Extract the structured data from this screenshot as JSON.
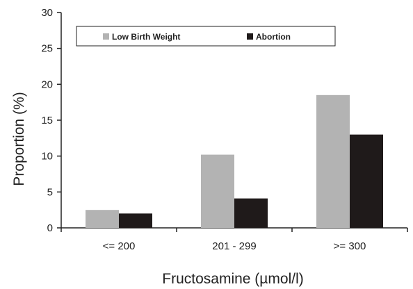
{
  "chart_data": {
    "type": "bar",
    "title": "",
    "xlabel": "Fructosamine (µmol/l)",
    "ylabel": "Proportion (%)",
    "categories": [
      "<= 200",
      "201 - 299",
      ">= 300"
    ],
    "series": [
      {
        "name": "Low Birth Weight",
        "values": [
          2.5,
          10.2,
          18.5
        ],
        "color": "#b3b3b3"
      },
      {
        "name": "Abortion",
        "values": [
          2.0,
          4.1,
          13.0
        ],
        "color": "#1f1a1a"
      }
    ],
    "ylim": [
      0,
      30
    ],
    "yticks": [
      0,
      5,
      10,
      15,
      20,
      25,
      30
    ],
    "grid": false,
    "legend_position": "top"
  }
}
